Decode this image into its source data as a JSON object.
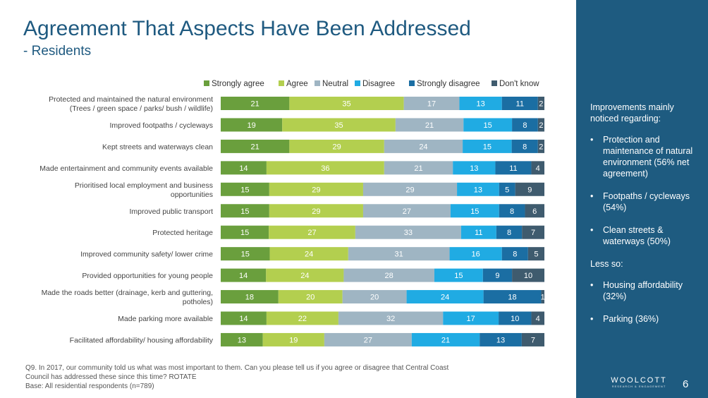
{
  "title": "Agreement That Aspects Have Been Addressed",
  "subtitle": "- Residents",
  "chart_data": {
    "type": "bar",
    "orientation": "horizontal",
    "stacked": true,
    "legend_position": "top",
    "grid": false,
    "categories": [
      [
        "Protected and maintained the natural environment",
        "(Trees / green space / parks/ bush / wildlife)"
      ],
      [
        "Improved footpaths / cycleways"
      ],
      [
        "Kept streets and waterways clean"
      ],
      [
        "Made entertainment and community events available"
      ],
      [
        "Prioritised local employment and business",
        "opportunities"
      ],
      [
        "Improved public transport"
      ],
      [
        "Protected heritage"
      ],
      [
        "Improved community safety/ lower crime"
      ],
      [
        "Provided opportunities for young people"
      ],
      [
        "Made the roads better (drainage, kerb and guttering,",
        "potholes)"
      ],
      [
        "Made parking more available"
      ],
      [
        "Facilitated affordability/ housing affordability"
      ]
    ],
    "series": [
      {
        "name": "Strongly agree",
        "color": "#6a9f3d",
        "values": [
          21,
          19,
          21,
          14,
          15,
          15,
          15,
          15,
          14,
          18,
          14,
          13
        ]
      },
      {
        "name": "Agree",
        "color": "#b3cf4f",
        "values": [
          35,
          35,
          29,
          36,
          29,
          29,
          27,
          24,
          24,
          20,
          22,
          19
        ]
      },
      {
        "name": "Neutral",
        "color": "#9fb5c3",
        "values": [
          17,
          21,
          24,
          21,
          29,
          27,
          33,
          31,
          28,
          20,
          32,
          27
        ]
      },
      {
        "name": "Disagree",
        "color": "#20abe3",
        "values": [
          13,
          15,
          15,
          13,
          13,
          15,
          11,
          16,
          15,
          24,
          17,
          21
        ]
      },
      {
        "name": "Strongly disagree",
        "color": "#1b6ea3",
        "values": [
          11,
          8,
          8,
          11,
          5,
          8,
          8,
          8,
          9,
          18,
          10,
          13
        ]
      },
      {
        "name": "Don't know",
        "color": "#3f5b6e",
        "values": [
          2,
          2,
          2,
          4,
          9,
          6,
          7,
          5,
          10,
          1,
          4,
          7
        ]
      }
    ]
  },
  "footnote": {
    "line1": "Q9. In 2017, our community told us what was most important to them. Can you please tell us if you agree or disagree that Central Coast",
    "line2": "Council has addressed these since this time? ROTATE",
    "line3": "Base:  All residential respondents (n=789)"
  },
  "sidebar": {
    "intro": "Improvements mainly noticed regarding:",
    "improvements": [
      "Protection and maintenance of natural environment  (56% net agreement)",
      "Footpaths / cycleways (54%)",
      "Clean streets & waterways (50%)"
    ],
    "less_so": "Less so:",
    "less_items": [
      "Housing affordability (32%)",
      "Parking (36%)"
    ]
  },
  "logo": {
    "name": "WOOLCOTT",
    "tagline": "RESEARCH & ENGAGEMENT"
  },
  "page_number": "6"
}
